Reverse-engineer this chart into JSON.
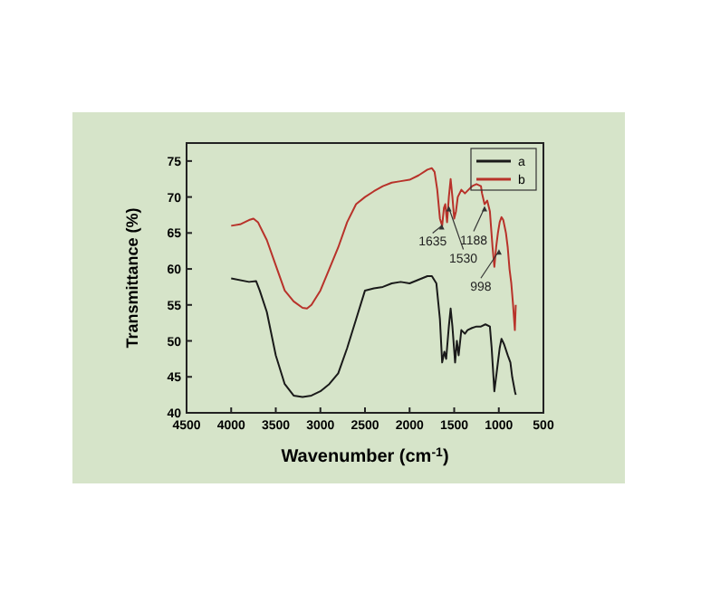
{
  "chart_data": {
    "type": "line",
    "xlabel": "Wavenumber (cm$^{-1}$)",
    "ylabel": "Transmittance (%)",
    "xlim": [
      4500,
      500
    ],
    "xticks": [
      4500,
      4000,
      3500,
      3000,
      2500,
      2000,
      1500,
      1000,
      500
    ],
    "ylim": [
      40,
      77.5
    ],
    "yticks": [
      40,
      45,
      50,
      55,
      60,
      65,
      70,
      75
    ],
    "grid": false,
    "legend": "top right",
    "marker": "none",
    "line_style": "solid",
    "series": [
      {
        "name": "a",
        "color": "#1a1a1a",
        "x": [
          4000,
          3800,
          3720,
          3680,
          3600,
          3500,
          3400,
          3300,
          3200,
          3100,
          3000,
          2900,
          2800,
          2700,
          2600,
          2500,
          2400,
          2300,
          2200,
          2100,
          2000,
          1900,
          1800,
          1750,
          1700,
          1660,
          1635,
          1610,
          1590,
          1560,
          1540,
          1520,
          1490,
          1470,
          1450,
          1420,
          1380,
          1350,
          1300,
          1250,
          1200,
          1150,
          1100,
          1080,
          1050,
          1020,
          990,
          970,
          940,
          900,
          870,
          850,
          820,
          810
        ],
        "values": [
          58.7,
          58.2,
          58.3,
          57,
          54,
          48,
          44,
          42.4,
          42.2,
          42.4,
          43,
          44,
          45.5,
          49,
          53,
          57,
          57.3,
          57.5,
          58,
          58.2,
          58,
          58.5,
          59,
          59,
          58,
          53,
          47,
          48.5,
          47.5,
          52,
          54.5,
          52,
          47,
          50,
          48,
          51.5,
          51,
          51.5,
          51.8,
          52,
          52,
          52.3,
          52,
          49,
          43,
          46,
          49,
          50.3,
          49.5,
          48,
          47,
          45,
          43,
          42.5
        ]
      },
      {
        "name": "b",
        "color": "#b8322a",
        "x": [
          4000,
          3900,
          3800,
          3750,
          3700,
          3600,
          3500,
          3400,
          3300,
          3200,
          3150,
          3100,
          3000,
          2900,
          2800,
          2700,
          2600,
          2500,
          2400,
          2300,
          2200,
          2100,
          2000,
          1900,
          1800,
          1750,
          1720,
          1690,
          1660,
          1635,
          1615,
          1600,
          1580,
          1560,
          1540,
          1520,
          1500,
          1480,
          1460,
          1420,
          1380,
          1340,
          1300,
          1250,
          1200,
          1188,
          1160,
          1130,
          1100,
          1070,
          1050,
          1030,
          1010,
          990,
          970,
          950,
          920,
          900,
          880,
          860,
          840,
          820,
          810
        ],
        "values": [
          66,
          66.2,
          66.8,
          67,
          66.5,
          64,
          60.5,
          57,
          55.5,
          54.6,
          54.5,
          55,
          57,
          60,
          63,
          66.5,
          69,
          70,
          70.8,
          71.5,
          72,
          72.2,
          72.4,
          73,
          73.8,
          74,
          73.5,
          71,
          67,
          66,
          68.5,
          69,
          66.5,
          70,
          72.5,
          70,
          67,
          68,
          70,
          71,
          70.5,
          71,
          71.5,
          71.8,
          71.5,
          70.5,
          69,
          69.5,
          68,
          63,
          60.3,
          63,
          65,
          66.5,
          67.2,
          66.8,
          65,
          63,
          60,
          58,
          55,
          51.5,
          55
        ]
      }
    ],
    "annotations": [
      {
        "text": "1635",
        "x": 1640,
        "y": 66.5
      },
      {
        "text": "1530",
        "x": 1560,
        "y": 69
      },
      {
        "text": "1188",
        "x": 1160,
        "y": 69
      },
      {
        "text": "998",
        "x": 998,
        "y": 63
      }
    ]
  }
}
